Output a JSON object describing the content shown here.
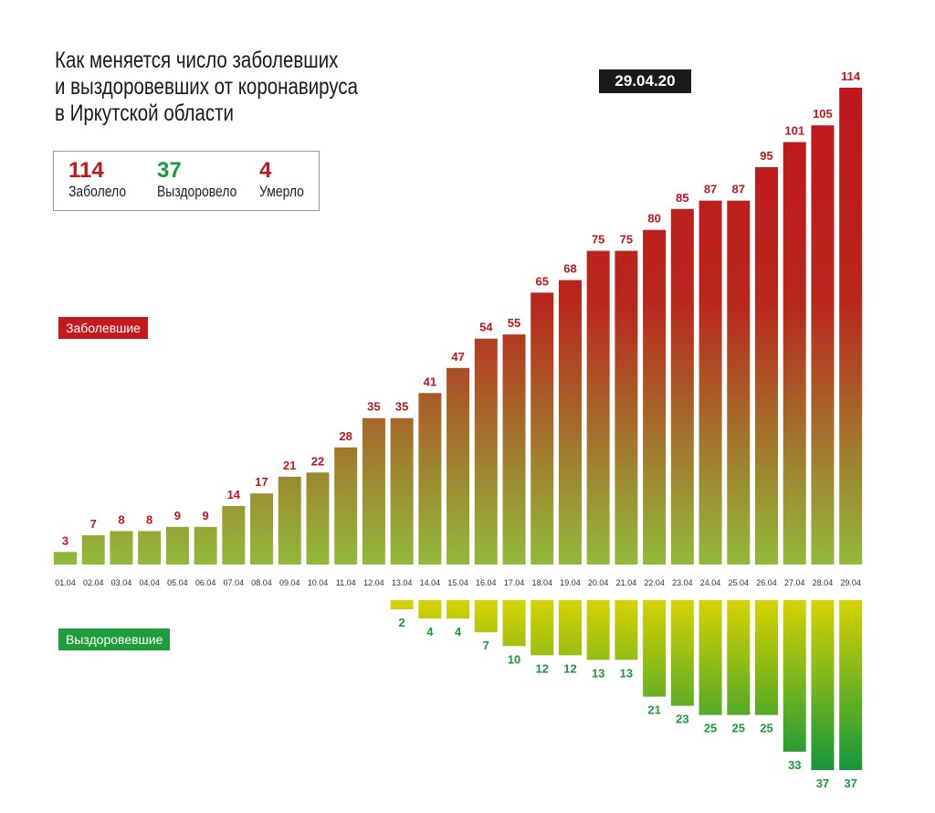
{
  "header": {
    "title_lines": [
      "Как меняется число заболевших",
      "и выздоровевших от коронавируса",
      "в Иркутской области"
    ],
    "date": "29.04.20"
  },
  "stats": [
    {
      "value": "114",
      "label": "Заболело",
      "color": "#c1161c"
    },
    {
      "value": "37",
      "label": "Выздоровело",
      "color": "#1a9a3a"
    },
    {
      "value": "4",
      "label": "Умерло",
      "color": "#c1161c"
    }
  ],
  "legend": {
    "infected": "Заболевшие",
    "recovered": "Выздоровевшие"
  },
  "colors": {
    "infected_top": "#c0161c",
    "infected_bottom": "#8fba3a",
    "recovered_top": "#d6d200",
    "recovered_bottom": "#14973a",
    "infected_tag": "#c41a1e",
    "recovered_tag": "#1f9c3c"
  },
  "chart_data": {
    "type": "bar",
    "title": "Как меняется число заболевших и выздоровевших от коронавируса в Иркутской области",
    "categories": [
      "01.04",
      "02.04",
      "03.04",
      "04.04",
      "05.04",
      "06.04",
      "07.04",
      "08.04",
      "09.04",
      "10.04",
      "11.04",
      "12.04",
      "13.04",
      "14.04",
      "15.04",
      "16.04",
      "17.04",
      "18.04",
      "19.04",
      "20.04",
      "21.04",
      "22.04",
      "23.04",
      "24.04",
      "25.04",
      "26.04",
      "27.04",
      "28.04",
      "29.04"
    ],
    "series": [
      {
        "name": "Заболевшие",
        "values": [
          3,
          7,
          8,
          8,
          9,
          9,
          14,
          17,
          21,
          22,
          28,
          35,
          35,
          41,
          47,
          54,
          55,
          65,
          68,
          75,
          75,
          80,
          85,
          87,
          87,
          95,
          101,
          105,
          114
        ]
      },
      {
        "name": "Выздоровевшие",
        "values": [
          null,
          null,
          null,
          null,
          null,
          null,
          null,
          null,
          null,
          null,
          null,
          null,
          2,
          4,
          4,
          7,
          10,
          12,
          12,
          13,
          13,
          21,
          23,
          25,
          25,
          25,
          33,
          37,
          37
        ]
      }
    ]
  }
}
